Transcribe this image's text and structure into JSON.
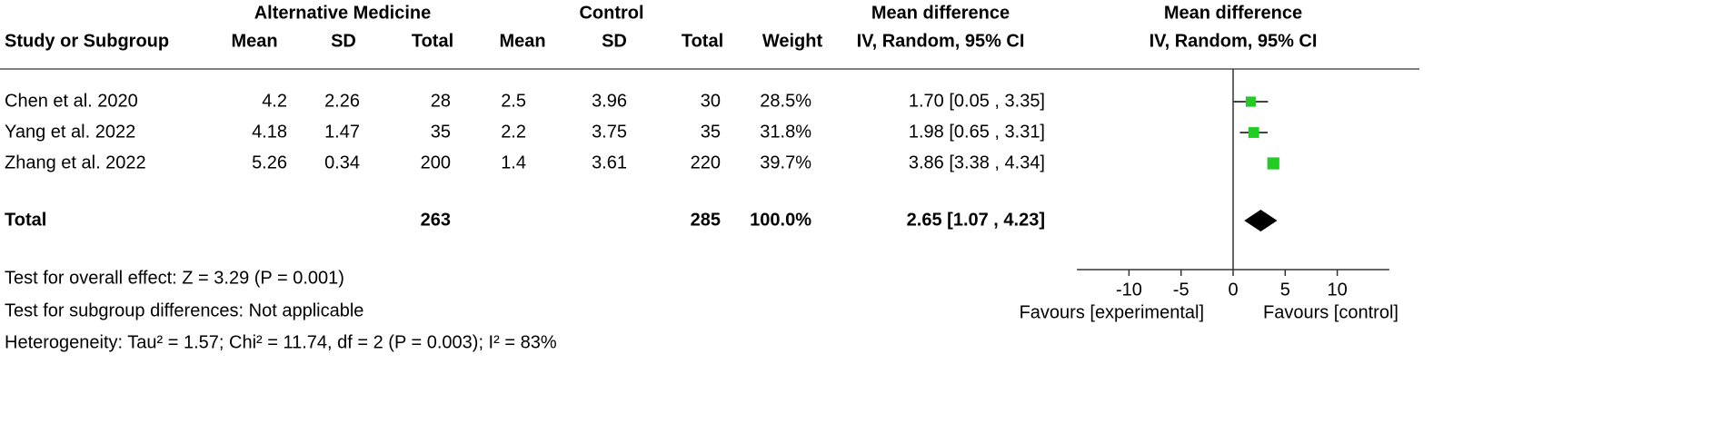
{
  "chart_data": {
    "type": "forest",
    "group_headers": [
      "Alternative Medicine",
      "Control",
      "Mean difference",
      "Mean difference"
    ],
    "columns": [
      "Study or Subgroup",
      "Mean",
      "SD",
      "Total",
      "Mean",
      "SD",
      "Total",
      "Weight",
      "IV, Random, 95% CI",
      "IV, Random, 95% CI"
    ],
    "studies": [
      {
        "cells": [
          "Chen et al. 2020",
          "4.2",
          "2.26",
          "28",
          "2.5",
          "3.96",
          "30",
          "28.5%",
          "1.70 [0.05 , 3.35]"
        ],
        "md": 1.7,
        "ci": [
          0.05,
          3.35
        ],
        "weight": 28.5
      },
      {
        "cells": [
          "Yang et al. 2022",
          "4.18",
          "1.47",
          "35",
          "2.2",
          "3.75",
          "35",
          "31.8%",
          "1.98 [0.65 , 3.31]"
        ],
        "md": 1.98,
        "ci": [
          0.65,
          3.31
        ],
        "weight": 31.8
      },
      {
        "cells": [
          "Zhang et al. 2022",
          "5.26",
          "0.34",
          "200",
          "1.4",
          "3.61",
          "220",
          "39.7%",
          "3.86 [3.38 , 4.34]"
        ],
        "md": 3.86,
        "ci": [
          3.38,
          4.34
        ],
        "weight": 39.7
      }
    ],
    "total": {
      "cells": [
        "Total",
        "",
        "",
        "263",
        "",
        "",
        "285",
        "100.0%",
        "2.65 [1.07 , 4.23]"
      ],
      "md": 2.65,
      "ci": [
        1.07,
        4.23
      ]
    },
    "footnotes": [
      "Test for overall effect: Z = 3.29 (P = 0.001)",
      "Test for subgroup differences: Not applicable",
      "Heterogeneity: Tau² = 1.57; Chi² = 11.74, df = 2 (P = 0.003); I² = 83%"
    ],
    "xlim": [
      -15,
      15
    ],
    "xticks": [
      -10,
      -5,
      0,
      5,
      10
    ],
    "x_labels": [
      "Favours [experimental]",
      "Favours [control]"
    ],
    "marker_color": "#22cc22"
  }
}
